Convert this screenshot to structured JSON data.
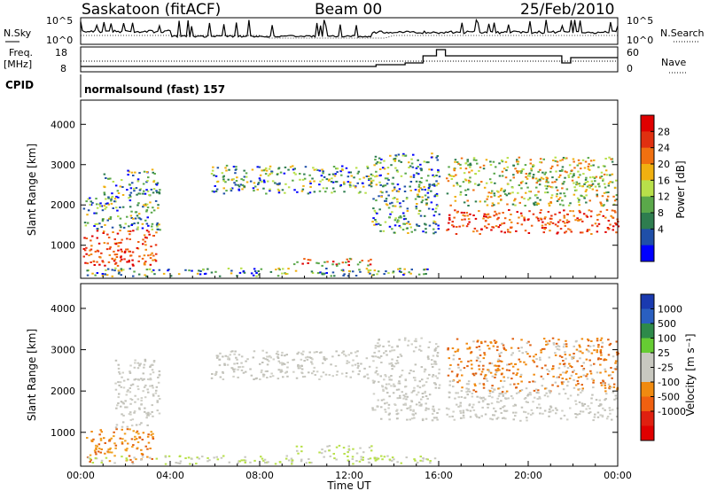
{
  "header": {
    "station": "Saskatoon (fitACF)",
    "beam": "Beam 00",
    "date": "25/Feb/2010"
  },
  "noise_panel": {
    "left_label": "N.Sky",
    "right_label": "N.Search",
    "tick_top": "10^5",
    "tick_bottom": "10^0"
  },
  "freq_panel": {
    "left_label_1": "Freq.",
    "left_label_2": "[MHz]",
    "right_label": "Nave",
    "left_ticks": [
      "18",
      "8"
    ],
    "right_ticks": [
      "60",
      "0"
    ]
  },
  "cpid_panel": {
    "label": "CPID",
    "program": "normalsound (fast) 157"
  },
  "colors": {
    "power_scale": [
      "#0000ff",
      "#1f4fa8",
      "#2e7d4f",
      "#5aa84a",
      "#b8e04a",
      "#f0b010",
      "#f07010",
      "#e03010",
      "#e00000"
    ],
    "velocity_scale": [
      "#1a3ab0",
      "#2a5fc0",
      "#2e8a4a",
      "#66cc33",
      "#c8c8c0",
      "#c8c8c0",
      "#f08a10",
      "#f06010",
      "#e02010",
      "#e00000"
    ]
  },
  "chart_data": [
    {
      "type": "heatmap",
      "title": "Power",
      "xlabel": "",
      "ylabel": "Slant Range [km]",
      "xlim": [
        0,
        24
      ],
      "ylim": [
        180,
        4600
      ],
      "y_ticks": [
        "1000",
        "2000",
        "3000",
        "4000"
      ],
      "colorbar": {
        "label": "Power [dB]",
        "ticks": [
          "4",
          "8",
          "12",
          "16",
          "20",
          "24",
          "28"
        ]
      },
      "regions": [
        {
          "t0": 0.0,
          "t1": 3.2,
          "r0": 300,
          "r1": 1500,
          "value": "high"
        },
        {
          "t0": 0.0,
          "t1": 3.6,
          "r0": 400,
          "r1": 2900,
          "value": "medium"
        },
        {
          "t0": 5.5,
          "t1": 13.2,
          "r0": 2200,
          "r1": 3100,
          "value": "medium"
        },
        {
          "t0": 9.0,
          "t1": 13.0,
          "r0": 500,
          "r1": 700,
          "value": "high"
        },
        {
          "t0": 13.0,
          "t1": 16.0,
          "r0": 1200,
          "r1": 3300,
          "value": "medium"
        },
        {
          "t0": 16.2,
          "t1": 24.0,
          "r0": 1300,
          "r1": 2000,
          "value": "high"
        },
        {
          "t0": 16.2,
          "t1": 24.0,
          "r0": 2000,
          "r1": 3300,
          "value": "low"
        }
      ]
    },
    {
      "type": "heatmap",
      "title": "Velocity",
      "xlabel": "Time UT",
      "ylabel": "Slant Range [km]",
      "xlim": [
        0,
        24
      ],
      "ylim": [
        180,
        4600
      ],
      "y_ticks": [
        "1000",
        "2000",
        "3000",
        "4000"
      ],
      "x_ticks": [
        "00:00",
        "04:00",
        "08:00",
        "12:00",
        "16:00",
        "20:00",
        "00:00"
      ],
      "colorbar": {
        "label": "Velocity [m s⁻¹]",
        "ticks": [
          "1000",
          "500",
          "100",
          "25",
          "-25",
          "-100",
          "-500",
          "-1000"
        ]
      }
    }
  ]
}
